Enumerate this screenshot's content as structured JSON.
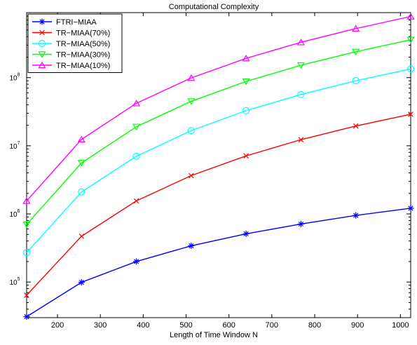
{
  "chart_data": {
    "type": "line",
    "title": "Computational Complexity",
    "xlabel": "Length of Time Window  N",
    "ylabel": "",
    "x_scale": "linear",
    "y_scale": "log",
    "xlim": [
      128,
      1024
    ],
    "ylim": [
      30000,
      900000000
    ],
    "x_ticks": [
      200,
      300,
      400,
      500,
      600,
      700,
      800,
      900,
      1000
    ],
    "y_ticks": [
      {
        "value": 100000,
        "base": "10",
        "exp": "5"
      },
      {
        "value": 1000000,
        "base": "10",
        "exp": "6"
      },
      {
        "value": 10000000,
        "base": "10",
        "exp": "7"
      },
      {
        "value": 100000000,
        "base": "10",
        "exp": "8"
      }
    ],
    "grid": false,
    "legend_position": "top-left",
    "x": [
      128,
      256,
      384,
      512,
      640,
      768,
      896,
      1024
    ],
    "series": [
      {
        "name": "FTRI−MIAA",
        "color": "#0000ff",
        "marker": "asterisk",
        "values": [
          31000,
          99000,
          200000,
          340000,
          510000,
          710000,
          950000,
          1210000
        ]
      },
      {
        "name": "TR−MIAA(70%)",
        "color": "#ff0000",
        "marker": "x",
        "values": [
          64000,
          470000,
          1550000,
          3650000,
          7100000,
          12300000,
          19500000,
          29000000
        ]
      },
      {
        "name": "TR−MIAA(50%)",
        "color": "#00ffff",
        "marker": "circle",
        "values": [
          270000,
          2100000,
          7000000,
          16700000,
          32800000,
          56500000,
          90000000,
          134000000
        ]
      },
      {
        "name": "TR−MIAA(30%)",
        "color": "#00ff00",
        "marker": "triangle-down",
        "values": [
          700000,
          5600000,
          19000000,
          45000000,
          88000000,
          152000000,
          240000000,
          360000000
        ]
      },
      {
        "name": "TR−MIAA(10%)",
        "color": "#ff00ff",
        "marker": "triangle-up",
        "values": [
          1550000,
          12400000,
          42000000,
          99000000,
          192000000,
          330000000,
          525000000,
          790000000
        ]
      }
    ]
  }
}
